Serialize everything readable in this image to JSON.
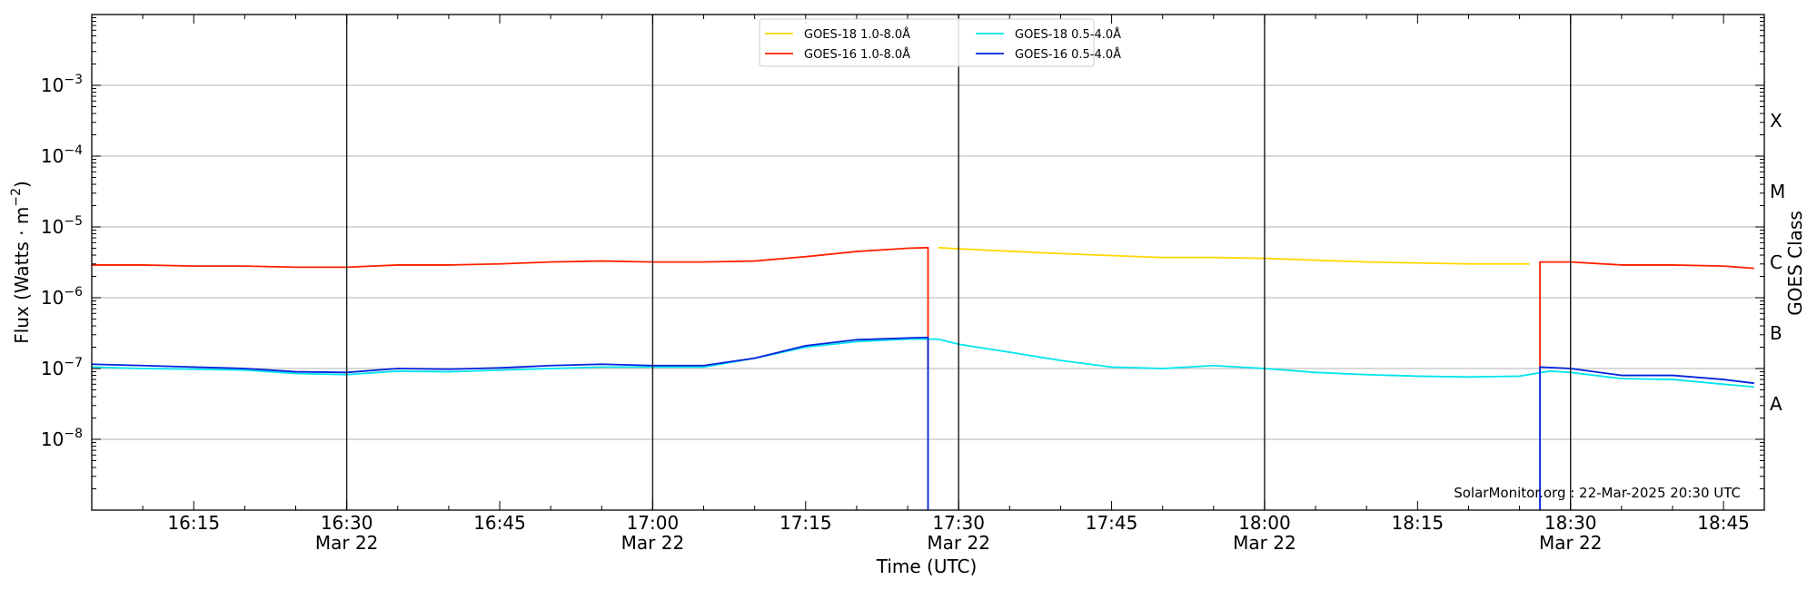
{
  "chart_data": {
    "type": "line",
    "title": "",
    "xlabel": "Time (UTC)",
    "ylabel": "Flux (Watts · m",
    "ylabel_exponent": "−2",
    "ylabel_close": ")",
    "y2label": "GOES Class",
    "y_scale": "log",
    "ylim": [
      1e-09,
      0.01
    ],
    "xlim": [
      "16:05",
      "18:49"
    ],
    "grid": "horizontal",
    "legend_position": "top-center",
    "y_ticks": [
      {
        "value": 1e-08,
        "base": "10",
        "exp": "−8"
      },
      {
        "value": 1e-07,
        "base": "10",
        "exp": "−7"
      },
      {
        "value": 1e-06,
        "base": "10",
        "exp": "−6"
      },
      {
        "value": 1e-05,
        "base": "10",
        "exp": "−5"
      },
      {
        "value": 0.0001,
        "base": "10",
        "exp": "−4"
      },
      {
        "value": 0.001,
        "base": "10",
        "exp": "−3"
      }
    ],
    "x_ticks": [
      {
        "time": "16:15",
        "label": "16:15",
        "date": ""
      },
      {
        "time": "16:30",
        "label": "16:30",
        "date": "Mar 22"
      },
      {
        "time": "16:45",
        "label": "16:45",
        "date": ""
      },
      {
        "time": "17:00",
        "label": "17:00",
        "date": "Mar 22"
      },
      {
        "time": "17:15",
        "label": "17:15",
        "date": ""
      },
      {
        "time": "17:30",
        "label": "17:30",
        "date": "Mar 22"
      },
      {
        "time": "17:45",
        "label": "17:45",
        "date": ""
      },
      {
        "time": "18:00",
        "label": "18:00",
        "date": "Mar 22"
      },
      {
        "time": "18:15",
        "label": "18:15",
        "date": ""
      },
      {
        "time": "18:30",
        "label": "18:30",
        "date": "Mar 22"
      },
      {
        "time": "18:45",
        "label": "18:45",
        "date": ""
      }
    ],
    "vertical_lines": [
      "16:30",
      "17:00",
      "17:30",
      "18:00",
      "18:30"
    ],
    "goes_classes": [
      {
        "label": "A",
        "flux": 3.16e-08
      },
      {
        "label": "B",
        "flux": 3.16e-07
      },
      {
        "label": "C",
        "flux": 3.16e-06
      },
      {
        "label": "M",
        "flux": 3.16e-05
      },
      {
        "label": "X",
        "flux": 0.000316
      }
    ],
    "series": [
      {
        "name": "GOES-18 1.0-8.0Å",
        "color": "#ffd700",
        "x": [
          "17:28",
          "17:30",
          "17:40",
          "17:50",
          "17:55",
          "18:00",
          "18:10",
          "18:20",
          "18:26"
        ],
        "y": [
          5.1e-06,
          4.9e-06,
          4.2e-06,
          3.7e-06,
          3.7e-06,
          3.6e-06,
          3.2e-06,
          3e-06,
          3e-06
        ]
      },
      {
        "name": "GOES-16 1.0-8.0Å",
        "color": "#ff2200",
        "x": [
          "16:05",
          "16:10",
          "16:15",
          "16:20",
          "16:25",
          "16:30",
          "16:35",
          "16:40",
          "16:45",
          "16:50",
          "16:55",
          "17:00",
          "17:05",
          "17:10",
          "17:15",
          "17:20",
          "17:25",
          "17:27",
          "17:27",
          "17:27",
          "18:27",
          "18:27",
          "18:30",
          "18:35",
          "18:40",
          "18:45",
          "18:48"
        ],
        "y": [
          2.9e-06,
          2.9e-06,
          2.8e-06,
          2.8e-06,
          2.7e-06,
          2.7e-06,
          2.9e-06,
          2.9e-06,
          3e-06,
          3.2e-06,
          3.3e-06,
          3.2e-06,
          3.2e-06,
          3.3e-06,
          3.8e-06,
          4.5e-06,
          5e-06,
          5.1e-06,
          1e-07,
          null,
          1e-07,
          3.2e-06,
          3.2e-06,
          2.9e-06,
          2.9e-06,
          2.8e-06,
          2.6e-06
        ]
      },
      {
        "name": "GOES-18 0.5-4.0Å",
        "color": "#00e5ee",
        "x": [
          "16:05",
          "16:10",
          "16:15",
          "16:20",
          "16:25",
          "16:30",
          "16:35",
          "16:40",
          "16:45",
          "16:50",
          "16:55",
          "17:00",
          "17:05",
          "17:10",
          "17:15",
          "17:20",
          "17:25",
          "17:28",
          "17:30",
          "17:35",
          "17:40",
          "17:45",
          "17:50",
          "17:55",
          "18:00",
          "18:05",
          "18:10",
          "18:15",
          "18:20",
          "18:25",
          "18:28",
          "18:30",
          "18:35",
          "18:40",
          "18:45",
          "18:48"
        ],
        "y": [
          1.05e-07,
          1e-07,
          9.8e-08,
          9.5e-08,
          8.5e-08,
          8.2e-08,
          9.2e-08,
          9e-08,
          9.5e-08,
          1e-07,
          1.05e-07,
          1.05e-07,
          1.05e-07,
          1.4e-07,
          2e-07,
          2.4e-07,
          2.6e-07,
          2.6e-07,
          2.2e-07,
          1.7e-07,
          1.3e-07,
          1.05e-07,
          1e-07,
          1.1e-07,
          1e-07,
          8.8e-08,
          8.2e-08,
          7.8e-08,
          7.6e-08,
          7.8e-08,
          9.2e-08,
          8.8e-08,
          7.2e-08,
          7e-08,
          6e-08,
          5.5e-08
        ]
      },
      {
        "name": "GOES-16 0.5-4.0Å",
        "color": "#0022dd",
        "x": [
          "16:05",
          "16:10",
          "16:15",
          "16:20",
          "16:25",
          "16:30",
          "16:35",
          "16:40",
          "16:45",
          "16:50",
          "16:55",
          "17:00",
          "17:05",
          "17:10",
          "17:15",
          "17:20",
          "17:25",
          "17:27",
          "17:27",
          "17:27",
          "18:27",
          "18:27",
          "18:30",
          "18:35",
          "18:40",
          "18:45",
          "18:48"
        ],
        "y": [
          1.15e-07,
          1.1e-07,
          1.05e-07,
          1e-07,
          9e-08,
          8.8e-08,
          1e-07,
          9.8e-08,
          1.02e-07,
          1.1e-07,
          1.15e-07,
          1.1e-07,
          1.1e-07,
          1.4e-07,
          2.1e-07,
          2.55e-07,
          2.7e-07,
          2.75e-07,
          1e-09,
          null,
          1e-09,
          1.05e-07,
          1e-07,
          8e-08,
          8e-08,
          7e-08,
          6.2e-08
        ]
      }
    ],
    "legend": {
      "columns": [
        [
          "GOES-18 1.0-8.0Å",
          "GOES-16 1.0-8.0Å"
        ],
        [
          "GOES-18 0.5-4.0Å",
          "GOES-16 0.5-4.0Å"
        ]
      ]
    },
    "annotation": "SolarMonitor.org : 22-Mar-2025 20:30 UTC"
  }
}
